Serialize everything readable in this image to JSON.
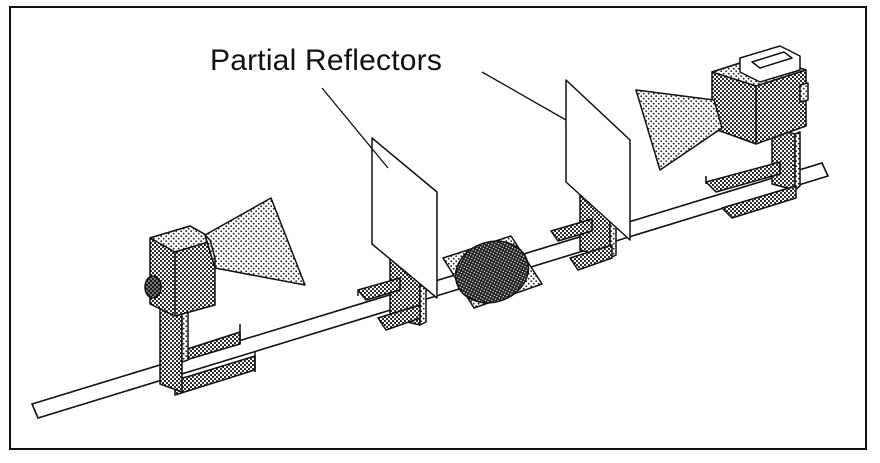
{
  "labels": {
    "partial_reflectors": "Partial Reflectors"
  },
  "colors": {
    "ink": "#111111",
    "stipple": "#2a2a2a",
    "paper": "#ffffff"
  }
}
